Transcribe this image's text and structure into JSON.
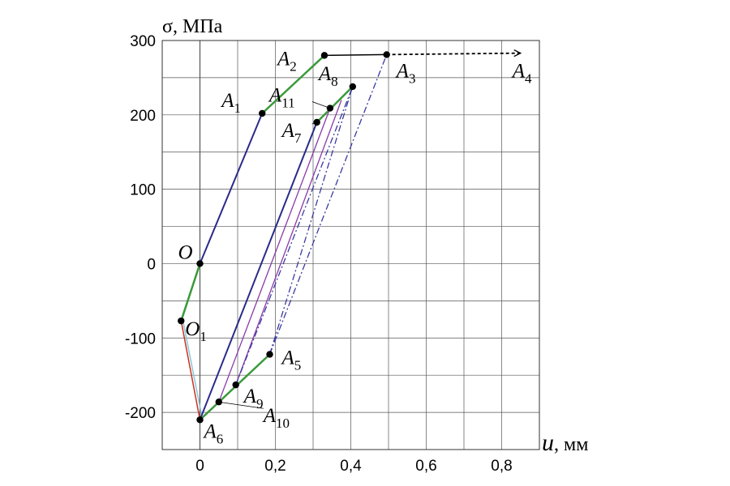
{
  "chart_data": {
    "type": "line",
    "title": "",
    "ylabel": "σ, МПа",
    "xlabel_italic": "u",
    "xlabel_unit": ", мм",
    "xlim": [
      -0.1,
      0.9
    ],
    "ylim": [
      -250,
      300
    ],
    "x_ticks": [
      {
        "v": 0,
        "label": "0"
      },
      {
        "v": 0.2,
        "label": "0,2"
      },
      {
        "v": 0.4,
        "label": "0,4"
      },
      {
        "v": 0.6,
        "label": "0,6"
      },
      {
        "v": 0.8,
        "label": "0,8"
      }
    ],
    "y_ticks": [
      {
        "v": 300,
        "label": "300"
      },
      {
        "v": 200,
        "label": "200"
      },
      {
        "v": 100,
        "label": "100"
      },
      {
        "v": 0,
        "label": "0"
      },
      {
        "v": -100,
        "label": "-100"
      },
      {
        "v": -200,
        "label": "-200"
      }
    ],
    "grid_x": [
      -0.1,
      0,
      0.1,
      0.2,
      0.3,
      0.4,
      0.5,
      0.6,
      0.7,
      0.8,
      0.9
    ],
    "grid_y": [
      -250,
      -200,
      -150,
      -100,
      -50,
      0,
      50,
      100,
      150,
      200,
      250,
      300
    ],
    "grid": true,
    "points": [
      {
        "id": "O",
        "label": "O",
        "sub": "",
        "x": 0,
        "y": 0
      },
      {
        "id": "O1",
        "label": "O",
        "sub": "1",
        "x": -0.05,
        "y": -77
      },
      {
        "id": "A1",
        "label": "A",
        "sub": "1",
        "x": 0.165,
        "y": 202
      },
      {
        "id": "A2",
        "label": "A",
        "sub": "2",
        "x": 0.33,
        "y": 280
      },
      {
        "id": "A3",
        "label": "A",
        "sub": "3",
        "x": 0.495,
        "y": 281
      },
      {
        "id": "A4",
        "label": "A",
        "sub": "4",
        "x": 0.85,
        "y": 283
      },
      {
        "id": "A5",
        "label": "A",
        "sub": "5",
        "x": 0.185,
        "y": -122
      },
      {
        "id": "A6",
        "label": "A",
        "sub": "6",
        "x": 0.0,
        "y": -210
      },
      {
        "id": "A7",
        "label": "A",
        "sub": "7",
        "x": 0.31,
        "y": 190
      },
      {
        "id": "A8",
        "label": "A",
        "sub": "8",
        "x": 0.405,
        "y": 238
      },
      {
        "id": "A9",
        "label": "A",
        "sub": "9",
        "x": 0.095,
        "y": -163
      },
      {
        "id": "A10",
        "label": "A",
        "sub": "10",
        "x": 0.05,
        "y": -186
      },
      {
        "id": "A11",
        "label": "A",
        "sub": "11",
        "x": 0.345,
        "y": 209
      }
    ],
    "series": [
      {
        "color": "#2a2a8a",
        "dash": "",
        "width": 2,
        "points": [
          [
            -0.05,
            -77
          ],
          [
            0,
            0
          ],
          [
            0.165,
            202
          ]
        ]
      },
      {
        "color": "#3a9a3a",
        "dash": "",
        "width": 2.5,
        "points": [
          [
            -0.05,
            -77
          ],
          [
            0,
            0
          ]
        ]
      },
      {
        "color": "#3a9a3a",
        "dash": "",
        "width": 2.5,
        "points": [
          [
            0.165,
            202
          ],
          [
            0.33,
            280
          ]
        ]
      },
      {
        "color": "#000000",
        "dash": "",
        "width": 1.5,
        "points": [
          [
            0.33,
            280
          ],
          [
            0.495,
            281
          ]
        ]
      },
      {
        "color": "#000000",
        "dash": "4,3",
        "width": 1.8,
        "points": [
          [
            0.495,
            281
          ],
          [
            0.85,
            283
          ]
        ]
      },
      {
        "color": "#cc3322",
        "dash": "",
        "width": 1.5,
        "points": [
          [
            -0.05,
            -77
          ],
          [
            0.0,
            -210
          ]
        ]
      },
      {
        "color": "#88c8d8",
        "dash": "",
        "width": 1.5,
        "points": [
          [
            -0.045,
            -77
          ],
          [
            0.005,
            -205
          ]
        ]
      },
      {
        "color": "#2a2a8a",
        "dash": "",
        "width": 2,
        "points": [
          [
            0.0,
            -210
          ],
          [
            0.31,
            190
          ]
        ]
      },
      {
        "color": "#3a9a3a",
        "dash": "",
        "width": 2.5,
        "points": [
          [
            0.31,
            190
          ],
          [
            0.405,
            238
          ]
        ]
      },
      {
        "color": "#3a9a3a",
        "dash": "",
        "width": 2.5,
        "points": [
          [
            0.0,
            -210
          ],
          [
            0.185,
            -122
          ]
        ]
      },
      {
        "color": "#8a3aa8",
        "dash": "",
        "width": 1.3,
        "points": [
          [
            0.05,
            -186
          ],
          [
            0.345,
            209
          ]
        ]
      },
      {
        "color": "#8a3aa8",
        "dash": "",
        "width": 1.3,
        "points": [
          [
            0.095,
            -163
          ],
          [
            0.375,
            220
          ]
        ]
      },
      {
        "color": "#3a3aa0",
        "dash": "8,3,2,3",
        "width": 1.3,
        "points": [
          [
            0.095,
            -163
          ],
          [
            0.405,
            238
          ]
        ]
      },
      {
        "color": "#3a3aa0",
        "dash": "8,3,2,3",
        "width": 1.3,
        "points": [
          [
            0.185,
            -122
          ],
          [
            0.495,
            281
          ]
        ]
      },
      {
        "color": "#3a3aa0",
        "dash": "8,3,2,3",
        "width": 1.3,
        "points": [
          [
            0.185,
            -122
          ],
          [
            0.405,
            238
          ]
        ]
      }
    ]
  }
}
